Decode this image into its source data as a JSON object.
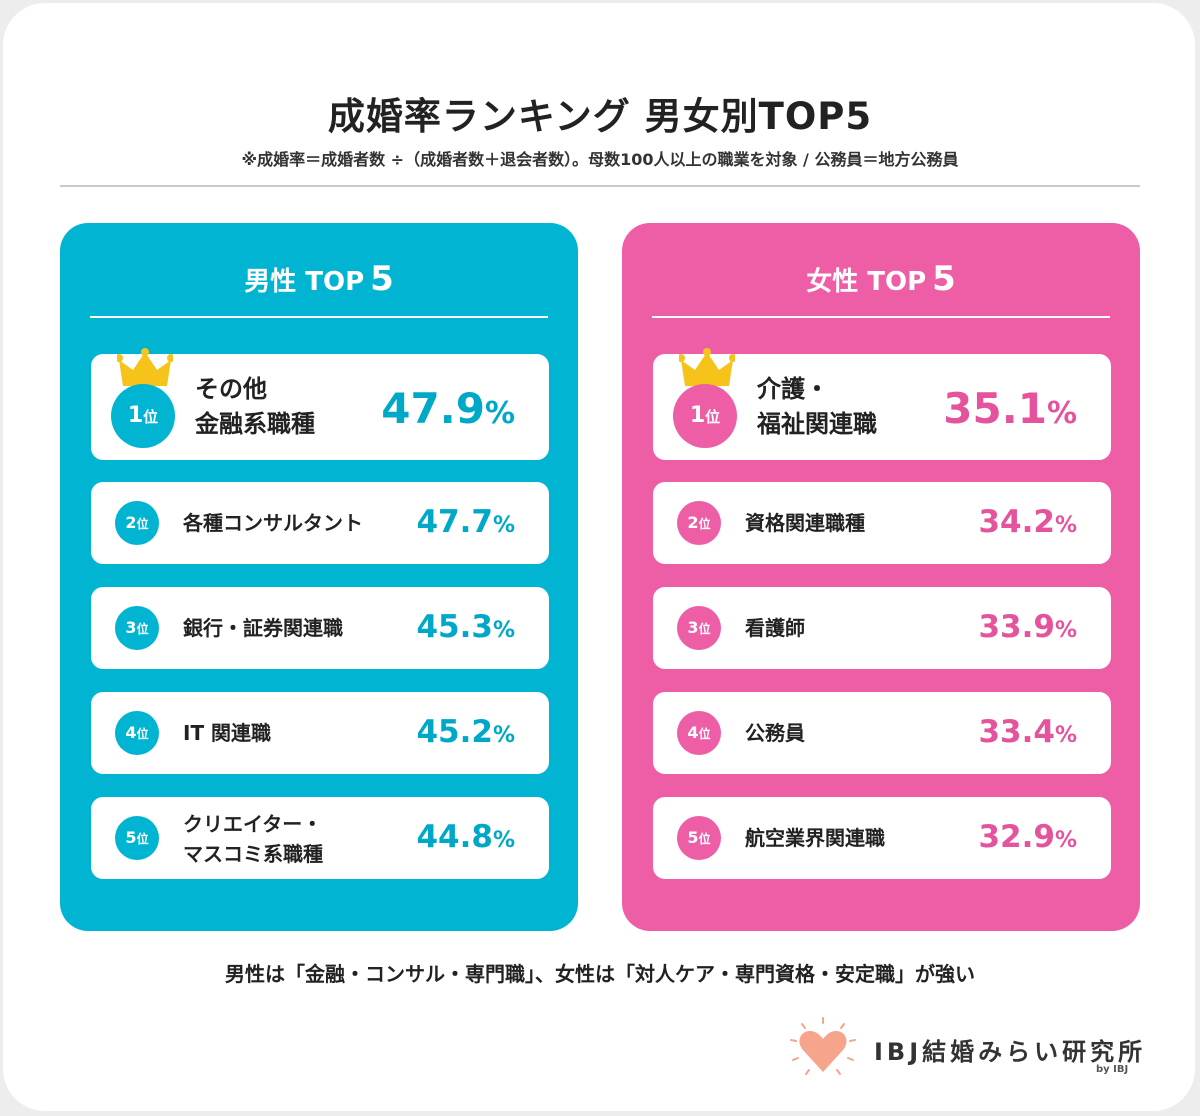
{
  "title": "成婚率ランキング 男女別TOP5",
  "subtitle": "※成婚率＝成婚者数 ÷（成婚者数＋退会者数）。母数100人以上の職業を対象 / 公務員＝地方公務員",
  "rank_suffix": "位",
  "percent_sign": "%",
  "male": {
    "heading": "男性 TOP",
    "heading_num": "5",
    "color": "#00b4d2",
    "items": [
      {
        "rank": "1",
        "line1": "その他",
        "line2": "金融系職種",
        "value": "47.9"
      },
      {
        "rank": "2",
        "line1": "各種コンサルタント",
        "line2": "",
        "value": "47.7"
      },
      {
        "rank": "3",
        "line1": "銀行・証券関連職",
        "line2": "",
        "value": "45.3"
      },
      {
        "rank": "4",
        "line1": "IT 関連職",
        "line2": "",
        "value": "45.2"
      },
      {
        "rank": "5",
        "line1": "クリエイター・",
        "line2": "マスコミ系職種",
        "value": "44.8"
      }
    ]
  },
  "female": {
    "heading": "女性 TOP",
    "heading_num": "5",
    "color": "#ee5ea6",
    "items": [
      {
        "rank": "1",
        "line1": "介護・",
        "line2": "福祉関連職",
        "value": "35.1"
      },
      {
        "rank": "2",
        "line1": "資格関連職種",
        "line2": "",
        "value": "34.2"
      },
      {
        "rank": "3",
        "line1": "看護師",
        "line2": "",
        "value": "33.9"
      },
      {
        "rank": "4",
        "line1": "公務員",
        "line2": "",
        "value": "33.4"
      },
      {
        "rank": "5",
        "line1": "航空業界関連職",
        "line2": "",
        "value": "32.9"
      }
    ]
  },
  "summary": "男性は「金融・コンサル・専門職」、女性は「対人ケア・専門資格・安定職」が強い",
  "logo": {
    "name": "IBJ結婚みらい研究所",
    "by": "by IBJ",
    "heart_color": "#f6a48c",
    "icon": "heart-icon"
  },
  "crown_icon": "crown-icon",
  "crown_color": "#f5c31a"
}
